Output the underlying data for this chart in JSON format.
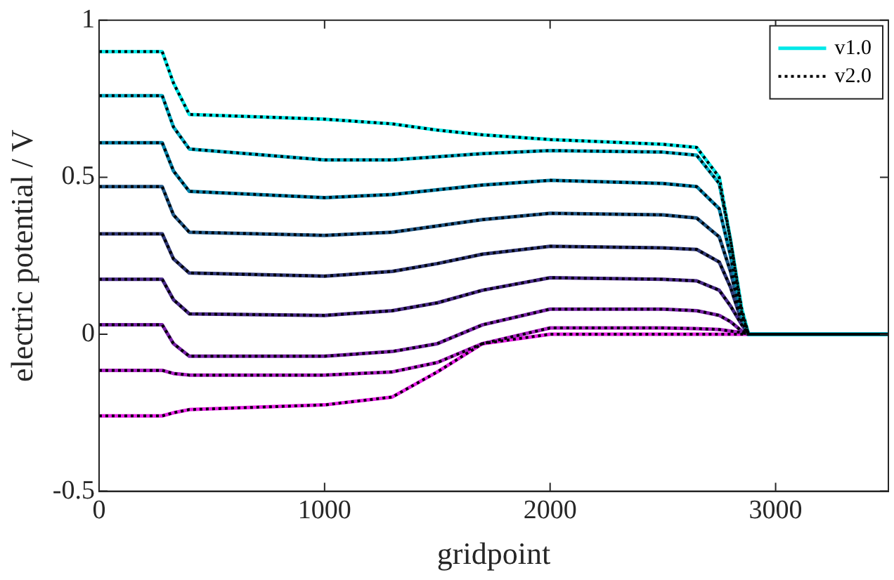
{
  "chart_data": {
    "type": "line",
    "xlabel": "gridpoint",
    "ylabel": "electric potential / V",
    "x": [
      0,
      280,
      330,
      400,
      1000,
      1300,
      1500,
      1700,
      2000,
      2500,
      2650,
      2750,
      2800,
      2850,
      2880,
      3500
    ],
    "xlim": [
      0,
      3500
    ],
    "xticks": [
      0,
      1000,
      2000,
      3000
    ],
    "ylim": [
      -0.5,
      1
    ],
    "yticks": [
      -0.5,
      0,
      0.5,
      1
    ],
    "grid": false,
    "legend": "top right",
    "marker": "none",
    "series": [
      {
        "name": "v1.0",
        "color": "#00e8e8",
        "line_style": "solid",
        "values": [
          0.9,
          0.9,
          0.8,
          0.7,
          0.685,
          0.67,
          0.65,
          0.635,
          0.62,
          0.605,
          0.595,
          0.5,
          0.3,
          0.08,
          0,
          0
        ]
      },
      {
        "color": "#00b0c8",
        "line_style": "solid",
        "values": [
          0.76,
          0.76,
          0.66,
          0.59,
          0.555,
          0.555,
          0.565,
          0.575,
          0.585,
          0.58,
          0.57,
          0.48,
          0.3,
          0.07,
          0,
          0
        ]
      },
      {
        "color": "#0080a8",
        "line_style": "solid",
        "values": [
          0.61,
          0.61,
          0.52,
          0.455,
          0.435,
          0.445,
          0.46,
          0.475,
          0.49,
          0.48,
          0.47,
          0.4,
          0.25,
          0.06,
          0,
          0
        ]
      },
      {
        "color": "#205888",
        "line_style": "solid",
        "values": [
          0.47,
          0.47,
          0.38,
          0.325,
          0.315,
          0.325,
          0.345,
          0.365,
          0.385,
          0.38,
          0.37,
          0.31,
          0.2,
          0.05,
          0,
          0
        ]
      },
      {
        "color": "#303878",
        "line_style": "solid",
        "values": [
          0.32,
          0.32,
          0.24,
          0.195,
          0.185,
          0.2,
          0.225,
          0.255,
          0.28,
          0.275,
          0.27,
          0.23,
          0.15,
          0.04,
          0,
          0
        ]
      },
      {
        "color": "#482888",
        "line_style": "solid",
        "values": [
          0.175,
          0.175,
          0.11,
          0.065,
          0.06,
          0.075,
          0.1,
          0.14,
          0.18,
          0.175,
          0.17,
          0.14,
          0.09,
          0.03,
          0,
          0
        ]
      },
      {
        "color": "#7820a8",
        "line_style": "solid",
        "values": [
          0.03,
          0.03,
          -0.03,
          -0.07,
          -0.07,
          -0.055,
          -0.03,
          0.03,
          0.08,
          0.08,
          0.075,
          0.06,
          0.04,
          0.01,
          0,
          0
        ]
      },
      {
        "color": "#b020c8",
        "line_style": "solid",
        "values": [
          -0.115,
          -0.115,
          -0.125,
          -0.13,
          -0.13,
          -0.12,
          -0.09,
          -0.03,
          0.02,
          0.02,
          0.018,
          0.015,
          0.01,
          0.005,
          0,
          0
        ]
      },
      {
        "color": "#e820e8",
        "line_style": "solid",
        "values": [
          -0.26,
          -0.26,
          -0.25,
          -0.24,
          -0.225,
          -0.2,
          -0.12,
          -0.03,
          0,
          0,
          0,
          0,
          0,
          0,
          0,
          0
        ]
      },
      {
        "name": "v2.0",
        "color": "#000000",
        "line_style": "dotted",
        "values": [
          0.9,
          0.9,
          0.8,
          0.7,
          0.685,
          0.67,
          0.65,
          0.635,
          0.62,
          0.605,
          0.595,
          0.5,
          0.3,
          0.08,
          0,
          0
        ]
      },
      {
        "color": "#000000",
        "line_style": "dotted",
        "values": [
          0.76,
          0.76,
          0.66,
          0.59,
          0.555,
          0.555,
          0.565,
          0.575,
          0.585,
          0.58,
          0.57,
          0.48,
          0.3,
          0.07,
          0,
          0
        ]
      },
      {
        "color": "#000000",
        "line_style": "dotted",
        "values": [
          0.61,
          0.61,
          0.52,
          0.455,
          0.435,
          0.445,
          0.46,
          0.475,
          0.49,
          0.48,
          0.47,
          0.4,
          0.25,
          0.06,
          0,
          0
        ]
      },
      {
        "color": "#000000",
        "line_style": "dotted",
        "values": [
          0.47,
          0.47,
          0.38,
          0.325,
          0.315,
          0.325,
          0.345,
          0.365,
          0.385,
          0.38,
          0.37,
          0.31,
          0.2,
          0.05,
          0,
          0
        ]
      },
      {
        "color": "#000000",
        "line_style": "dotted",
        "values": [
          0.32,
          0.32,
          0.24,
          0.195,
          0.185,
          0.2,
          0.225,
          0.255,
          0.28,
          0.275,
          0.27,
          0.23,
          0.15,
          0.04,
          0,
          0
        ]
      },
      {
        "color": "#000000",
        "line_style": "dotted",
        "values": [
          0.175,
          0.175,
          0.11,
          0.065,
          0.06,
          0.075,
          0.1,
          0.14,
          0.18,
          0.175,
          0.17,
          0.14,
          0.09,
          0.03,
          0,
          0
        ]
      },
      {
        "color": "#000000",
        "line_style": "dotted",
        "values": [
          0.03,
          0.03,
          -0.03,
          -0.07,
          -0.07,
          -0.055,
          -0.03,
          0.03,
          0.08,
          0.08,
          0.075,
          0.06,
          0.04,
          0.01,
          0,
          0
        ]
      },
      {
        "color": "#000000",
        "line_style": "dotted",
        "values": [
          -0.115,
          -0.115,
          -0.125,
          -0.13,
          -0.13,
          -0.12,
          -0.09,
          -0.03,
          0.02,
          0.02,
          0.018,
          0.015,
          0.01,
          0.005,
          0,
          0
        ]
      },
      {
        "color": "#000000",
        "line_style": "dotted",
        "values": [
          -0.26,
          -0.26,
          -0.25,
          -0.24,
          -0.225,
          -0.2,
          -0.12,
          -0.03,
          0,
          0,
          0,
          0,
          0,
          0,
          0,
          0
        ]
      }
    ]
  }
}
